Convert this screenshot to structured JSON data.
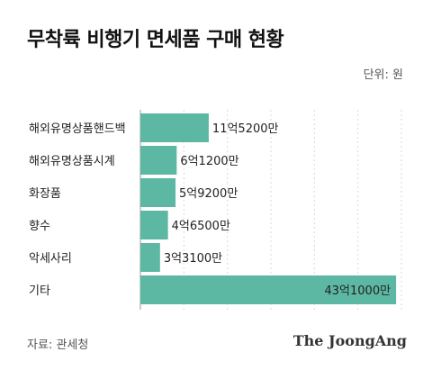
{
  "header": {
    "title": "무착륙 비행기 면세품 구매 현황",
    "unit": "단위: 원"
  },
  "footer": {
    "source": "자료: 관세청",
    "brand": "The JoongAng"
  },
  "colors": {
    "bar": "#5cb8a3",
    "grid": "#d9d9d9",
    "axis": "#999999"
  },
  "chart_data": {
    "type": "bar",
    "orientation": "horizontal",
    "categories": [
      "해외유명상품핸드백",
      "해외유명상품시계",
      "화장품",
      "향수",
      "악세사리",
      "기타"
    ],
    "values": [
      1152000000,
      612000000,
      592000000,
      465000000,
      331000000,
      4310000000
    ],
    "value_labels": [
      "11억5200만",
      "6억1200만",
      "5억9200만",
      "4억6500만",
      "3억3100만",
      "43억1000만"
    ],
    "xlim": [
      0,
      4400000000
    ],
    "grid": true
  }
}
